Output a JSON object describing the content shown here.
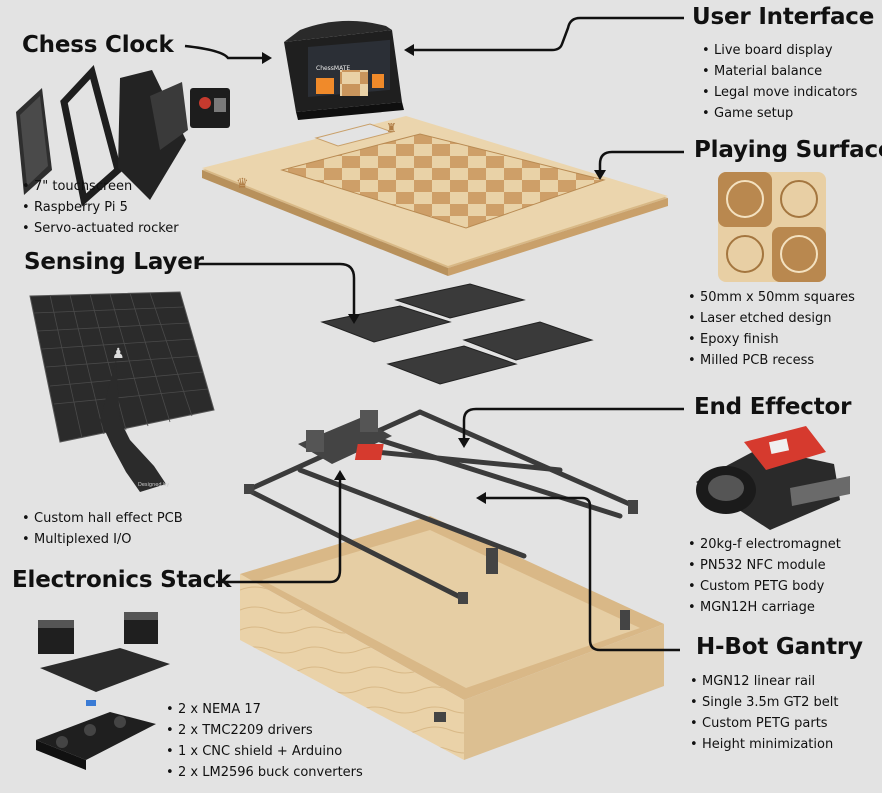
{
  "sections": [
    {
      "id": "chess-clock",
      "title": "Chess Clock",
      "bullets": [
        "7\" touchscreen",
        "Raspberry Pi 5",
        "Servo-actuated rocker"
      ]
    },
    {
      "id": "user-interface",
      "title": "User Interface",
      "bullets": [
        "Live board display",
        "Material balance",
        "Legal move indicators",
        "Game setup"
      ]
    },
    {
      "id": "playing-surface",
      "title": "Playing Surface",
      "bullets": [
        "50mm x 50mm squares",
        "Laser etched design",
        "Epoxy finish",
        "Milled PCB recess"
      ]
    },
    {
      "id": "sensing-layer",
      "title": "Sensing Layer",
      "bullets": [
        "Custom hall effect PCB",
        "Multiplexed I/O"
      ]
    },
    {
      "id": "end-effector",
      "title": "End Effector",
      "bullets": [
        "20kg-f electromagnet",
        "PN532 NFC module",
        "Custom PETG body",
        "MGN12H carriage"
      ]
    },
    {
      "id": "electronics-stack",
      "title": "Electronics Stack",
      "bullets": [
        "2 x NEMA 17",
        "2 x TMC2209 drivers",
        "1 x CNC shield + Arduino",
        "2 x LM2596 buck converters"
      ]
    },
    {
      "id": "h-bot-gantry",
      "title": "H-Bot Gantry",
      "bullets": [
        "MGN12 linear rail",
        "Single 3.5m GT2 belt",
        "Custom PETG parts",
        "Height minimization"
      ]
    }
  ],
  "screen_title": "ChessMATE",
  "pcb_label": "Designed by",
  "colors": {
    "background": "#e3e3e3",
    "wood": "#e8cfa4",
    "wood_dark": "#c99a62",
    "pcb": "#2b2b2b",
    "gantry": "#3a3a3a",
    "accent_red": "#d63a2e",
    "screen_orange": "#f08a2a"
  }
}
